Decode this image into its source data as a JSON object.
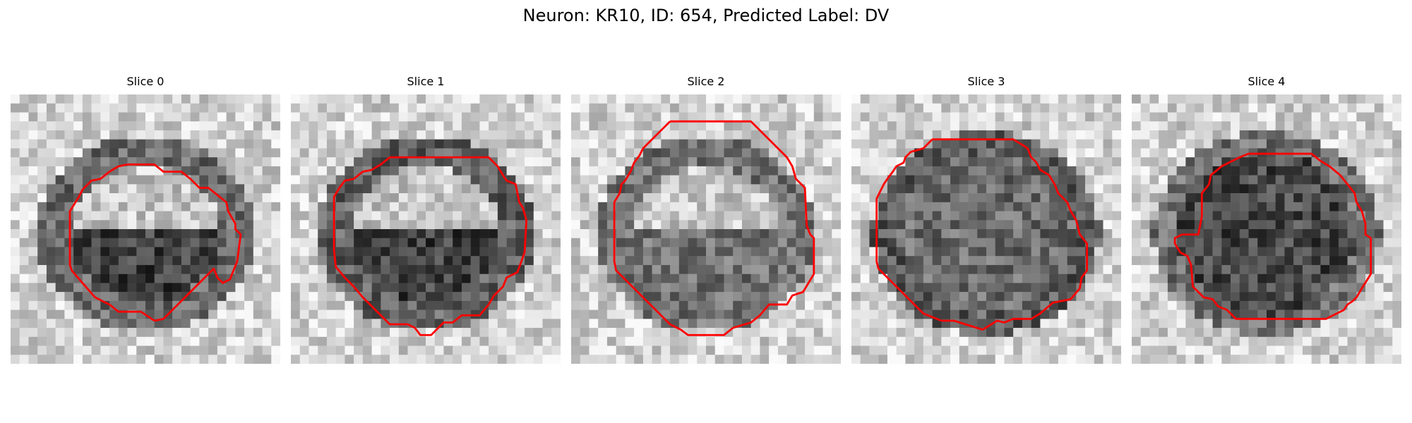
{
  "figure": {
    "title": "Neuron: KR10, ID: 654, Predicted Label: DV",
    "contour_color": "#ff0000",
    "colormap": "grayscale",
    "panels": [
      {
        "label": "Slice 0",
        "seed": 11,
        "membrane": 0.58,
        "interior": "bright-top-dark-bottom"
      },
      {
        "label": "Slice 1",
        "seed": 23,
        "membrane": 0.62,
        "interior": "bright-top-dark-bottom"
      },
      {
        "label": "Slice 2",
        "seed": 37,
        "membrane": 0.55,
        "interior": "bright-top-mid-bottom"
      },
      {
        "label": "Slice 3",
        "seed": 41,
        "membrane": 0.6,
        "interior": "mid-dark-speckled"
      },
      {
        "label": "Slice 4",
        "seed": 53,
        "membrane": 0.7,
        "interior": "dark-filled"
      }
    ]
  }
}
